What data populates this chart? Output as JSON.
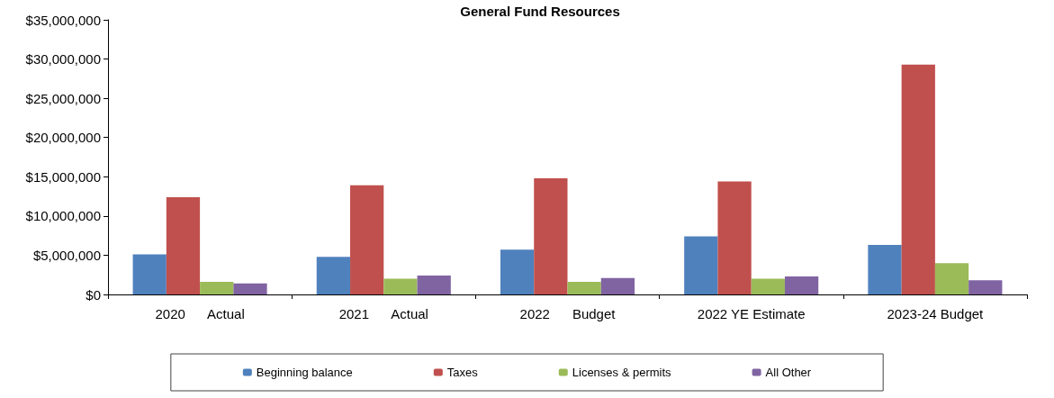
{
  "chart_data": {
    "type": "bar",
    "title": "General Fund Resources",
    "categories": [
      "2020      Actual",
      "2021      Actual",
      "2022      Budget",
      "2022 YE Estimate",
      "2023-24 Budget"
    ],
    "series": [
      {
        "name": "Beginning balance",
        "color": "#4f81bd",
        "values": [
          5100000,
          4800000,
          5700000,
          7400000,
          6300000
        ]
      },
      {
        "name": "Taxes",
        "color": "#c0504d",
        "values": [
          12400000,
          13900000,
          14800000,
          14400000,
          29300000
        ]
      },
      {
        "name": "Licenses & permits",
        "color": "#9bbb59",
        "values": [
          1600000,
          2000000,
          1600000,
          2000000,
          4000000
        ]
      },
      {
        "name": "All Other",
        "color": "#8064a2",
        "values": [
          1400000,
          2400000,
          2100000,
          2300000,
          1800000
        ]
      }
    ],
    "ylim": [
      0,
      35000000
    ],
    "yticks": [
      {
        "value": 0,
        "label": "$0"
      },
      {
        "value": 5000000,
        "label": "$5,000,000"
      },
      {
        "value": 10000000,
        "label": "$10,000,000"
      },
      {
        "value": 15000000,
        "label": "$15,000,000"
      },
      {
        "value": 20000000,
        "label": "$20,000,000"
      },
      {
        "value": 25000000,
        "label": "$25,000,000"
      },
      {
        "value": 30000000,
        "label": "$30,000,000"
      },
      {
        "value": 35000000,
        "label": "$35,000,000"
      }
    ],
    "grid": false,
    "legend": "bottom"
  }
}
